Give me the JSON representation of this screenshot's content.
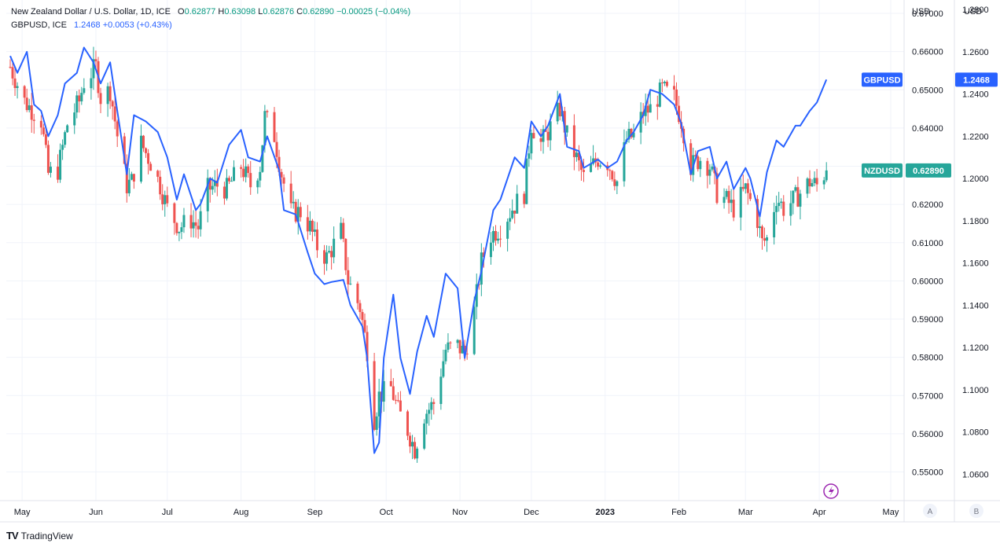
{
  "legend": {
    "main_name": "New Zealand Dollar / U.S. Dollar, 1D, ICE",
    "open_label": "O",
    "open": "0.62877",
    "high_label": "H",
    "high": "0.63098",
    "low_label": "L",
    "low": "0.62876",
    "close_label": "C",
    "close": "0.62890",
    "change": "−0.00025 (−0.04%)",
    "compare_name": "GBPUSD, ICE",
    "compare_value": "1.2468",
    "compare_change": "+0.0053 (+0.43%)"
  },
  "axes": {
    "left_unit": "USD",
    "right_unit": "USD",
    "left_scale_button": "A",
    "right_scale_button": "B"
  },
  "badges": {
    "gbpusd_label": "GBPUSD",
    "gbpusd_value": "1.2468",
    "nzdusd_label": "NZDUSD",
    "nzdusd_value": "0.62890"
  },
  "footer": {
    "brand": "TradingView"
  },
  "colors": {
    "up": "#26a69a",
    "down": "#ef5350",
    "line": "#2962ff",
    "badge_green": "#26a69a",
    "badge_blue": "#2962ff",
    "grid": "#f0f3fa"
  },
  "chart_data": {
    "type": "candlestick+line",
    "x_ticks": [
      "May",
      "Jun",
      "Jul",
      "Aug",
      "Sep",
      "Oct",
      "Nov",
      "Dec",
      "2023",
      "Feb",
      "Mar",
      "Apr",
      "May"
    ],
    "nzdusd_axis": {
      "ticks": [
        "0.55000",
        "0.56000",
        "0.57000",
        "0.58000",
        "0.59000",
        "0.60000",
        "0.61000",
        "0.62000",
        "0.63000",
        "0.64000",
        "0.65000",
        "0.66000",
        "0.67000"
      ],
      "ylim": [
        0.5425,
        0.6735
      ]
    },
    "gbpusd_axis": {
      "ticks": [
        "1.0600",
        "1.0800",
        "1.1000",
        "1.1200",
        "1.1400",
        "1.1600",
        "1.1800",
        "1.2000",
        "1.2200",
        "1.2400",
        "1.2600",
        "1.2800"
      ],
      "ylim": [
        1.0475,
        1.2845
      ]
    },
    "nzdusd_close_path": [
      [
        "2022-04-26",
        0.656
      ],
      [
        "2022-05-02",
        0.647
      ],
      [
        "2022-05-09",
        0.642
      ],
      [
        "2022-05-12",
        0.628
      ],
      [
        "2022-05-16",
        0.629
      ],
      [
        "2022-05-20",
        0.641
      ],
      [
        "2022-05-25",
        0.647
      ],
      [
        "2022-05-27",
        0.652
      ],
      [
        "2022-06-01",
        0.656
      ],
      [
        "2022-06-03",
        0.648
      ],
      [
        "2022-06-07",
        0.65
      ],
      [
        "2022-06-10",
        0.638
      ],
      [
        "2022-06-14",
        0.625
      ],
      [
        "2022-06-16",
        0.626
      ],
      [
        "2022-06-20",
        0.636
      ],
      [
        "2022-06-24",
        0.631
      ],
      [
        "2022-06-28",
        0.625
      ],
      [
        "2022-07-01",
        0.619
      ],
      [
        "2022-07-06",
        0.614
      ],
      [
        "2022-07-11",
        0.616
      ],
      [
        "2022-07-14",
        0.614
      ],
      [
        "2022-07-18",
        0.624
      ],
      [
        "2022-07-22",
        0.625
      ],
      [
        "2022-07-26",
        0.624
      ],
      [
        "2022-08-01",
        0.63
      ],
      [
        "2022-08-05",
        0.625
      ],
      [
        "2022-08-09",
        0.63
      ],
      [
        "2022-08-11",
        0.643
      ],
      [
        "2022-08-15",
        0.638
      ],
      [
        "2022-08-18",
        0.628
      ],
      [
        "2022-08-22",
        0.618
      ],
      [
        "2022-08-26",
        0.618
      ],
      [
        "2022-08-30",
        0.614
      ],
      [
        "2022-09-02",
        0.609
      ],
      [
        "2022-09-06",
        0.606
      ],
      [
        "2022-09-12",
        0.613
      ],
      [
        "2022-09-15",
        0.6
      ],
      [
        "2022-09-20",
        0.593
      ],
      [
        "2022-09-23",
        0.582
      ],
      [
        "2022-09-26",
        0.564
      ],
      [
        "2022-09-28",
        0.57
      ],
      [
        "2022-10-03",
        0.572
      ],
      [
        "2022-10-06",
        0.566
      ],
      [
        "2022-10-10",
        0.561
      ],
      [
        "2022-10-13",
        0.556
      ],
      [
        "2022-10-17",
        0.565
      ],
      [
        "2022-10-21",
        0.568
      ],
      [
        "2022-10-26",
        0.582
      ],
      [
        "2022-10-31",
        0.583
      ],
      [
        "2022-11-03",
        0.581
      ],
      [
        "2022-11-07",
        0.592
      ],
      [
        "2022-11-10",
        0.605
      ],
      [
        "2022-11-14",
        0.612
      ],
      [
        "2022-11-18",
        0.614
      ],
      [
        "2022-11-23",
        0.619
      ],
      [
        "2022-11-28",
        0.623
      ],
      [
        "2022-12-01",
        0.641
      ],
      [
        "2022-12-05",
        0.636
      ],
      [
        "2022-12-08",
        0.639
      ],
      [
        "2022-12-13",
        0.645
      ],
      [
        "2022-12-16",
        0.638
      ],
      [
        "2022-12-20",
        0.632
      ],
      [
        "2022-12-23",
        0.627
      ],
      [
        "2022-12-29",
        0.632
      ],
      [
        "2023-01-02",
        0.631
      ],
      [
        "2023-01-06",
        0.626
      ],
      [
        "2023-01-10",
        0.637
      ],
      [
        "2023-01-13",
        0.638
      ],
      [
        "2023-01-17",
        0.644
      ],
      [
        "2023-01-20",
        0.645
      ],
      [
        "2023-01-25",
        0.65
      ],
      [
        "2023-01-30",
        0.648
      ],
      [
        "2023-02-02",
        0.642
      ],
      [
        "2023-02-06",
        0.63
      ],
      [
        "2023-02-10",
        0.632
      ],
      [
        "2023-02-14",
        0.63
      ],
      [
        "2023-02-17",
        0.623
      ],
      [
        "2023-02-21",
        0.621
      ],
      [
        "2023-02-24",
        0.619
      ],
      [
        "2023-03-01",
        0.624
      ],
      [
        "2023-03-03",
        0.621
      ],
      [
        "2023-03-06",
        0.616
      ],
      [
        "2023-03-08",
        0.61
      ],
      [
        "2023-03-10",
        0.611
      ],
      [
        "2023-03-14",
        0.622
      ],
      [
        "2023-03-17",
        0.619
      ],
      [
        "2023-03-21",
        0.621
      ],
      [
        "2023-03-24",
        0.623
      ],
      [
        "2023-03-28",
        0.626
      ],
      [
        "2023-03-31",
        0.625
      ],
      [
        "2023-04-04",
        0.6289
      ]
    ],
    "gbpusd_close": [
      [
        "2022-04-26",
        1.258
      ],
      [
        "2022-04-29",
        1.25
      ],
      [
        "2022-05-03",
        1.26
      ],
      [
        "2022-05-06",
        1.235
      ],
      [
        "2022-05-09",
        1.232
      ],
      [
        "2022-05-12",
        1.22
      ],
      [
        "2022-05-16",
        1.23
      ],
      [
        "2022-05-19",
        1.245
      ],
      [
        "2022-05-24",
        1.25
      ],
      [
        "2022-05-27",
        1.262
      ],
      [
        "2022-05-31",
        1.255
      ],
      [
        "2022-06-03",
        1.245
      ],
      [
        "2022-06-07",
        1.255
      ],
      [
        "2022-06-10",
        1.232
      ],
      [
        "2022-06-14",
        1.202
      ],
      [
        "2022-06-17",
        1.23
      ],
      [
        "2022-06-22",
        1.227
      ],
      [
        "2022-06-27",
        1.222
      ],
      [
        "2022-07-01",
        1.21
      ],
      [
        "2022-07-05",
        1.19
      ],
      [
        "2022-07-08",
        1.202
      ],
      [
        "2022-07-13",
        1.185
      ],
      [
        "2022-07-15",
        1.188
      ],
      [
        "2022-07-19",
        1.2
      ],
      [
        "2022-07-22",
        1.198
      ],
      [
        "2022-07-27",
        1.216
      ],
      [
        "2022-08-01",
        1.223
      ],
      [
        "2022-08-04",
        1.21
      ],
      [
        "2022-08-09",
        1.208
      ],
      [
        "2022-08-12",
        1.22
      ],
      [
        "2022-08-17",
        1.204
      ],
      [
        "2022-08-19",
        1.185
      ],
      [
        "2022-08-24",
        1.183
      ],
      [
        "2022-08-29",
        1.165
      ],
      [
        "2022-09-01",
        1.155
      ],
      [
        "2022-09-05",
        1.15
      ],
      [
        "2022-09-08",
        1.151
      ],
      [
        "2022-09-13",
        1.152
      ],
      [
        "2022-09-16",
        1.14
      ],
      [
        "2022-09-21",
        1.13
      ],
      [
        "2022-09-23",
        1.115
      ],
      [
        "2022-09-26",
        1.07
      ],
      [
        "2022-09-28",
        1.075
      ],
      [
        "2022-09-30",
        1.115
      ],
      [
        "2022-10-04",
        1.145
      ],
      [
        "2022-10-07",
        1.115
      ],
      [
        "2022-10-11",
        1.098
      ],
      [
        "2022-10-14",
        1.118
      ],
      [
        "2022-10-18",
        1.135
      ],
      [
        "2022-10-21",
        1.125
      ],
      [
        "2022-10-26",
        1.155
      ],
      [
        "2022-10-31",
        1.148
      ],
      [
        "2022-11-03",
        1.115
      ],
      [
        "2022-11-07",
        1.142
      ],
      [
        "2022-11-10",
        1.156
      ],
      [
        "2022-11-15",
        1.185
      ],
      [
        "2022-11-18",
        1.19
      ],
      [
        "2022-11-24",
        1.21
      ],
      [
        "2022-11-28",
        1.205
      ],
      [
        "2022-12-01",
        1.227
      ],
      [
        "2022-12-05",
        1.22
      ],
      [
        "2022-12-08",
        1.225
      ],
      [
        "2022-12-13",
        1.24
      ],
      [
        "2022-12-16",
        1.215
      ],
      [
        "2022-12-21",
        1.213
      ],
      [
        "2022-12-23",
        1.205
      ],
      [
        "2022-12-29",
        1.209
      ],
      [
        "2023-01-02",
        1.205
      ],
      [
        "2023-01-06",
        1.208
      ],
      [
        "2023-01-10",
        1.218
      ],
      [
        "2023-01-13",
        1.222
      ],
      [
        "2023-01-17",
        1.23
      ],
      [
        "2023-01-20",
        1.242
      ],
      [
        "2023-01-25",
        1.24
      ],
      [
        "2023-01-30",
        1.235
      ],
      [
        "2023-02-02",
        1.226
      ],
      [
        "2023-02-06",
        1.202
      ],
      [
        "2023-02-09",
        1.213
      ],
      [
        "2023-02-14",
        1.215
      ],
      [
        "2023-02-17",
        1.2
      ],
      [
        "2023-02-21",
        1.208
      ],
      [
        "2023-02-24",
        1.195
      ],
      [
        "2023-03-01",
        1.205
      ],
      [
        "2023-03-03",
        1.2
      ],
      [
        "2023-03-07",
        1.182
      ],
      [
        "2023-03-10",
        1.203
      ],
      [
        "2023-03-14",
        1.218
      ],
      [
        "2023-03-17",
        1.215
      ],
      [
        "2023-03-22",
        1.225
      ],
      [
        "2023-03-24",
        1.225
      ],
      [
        "2023-03-28",
        1.232
      ],
      [
        "2023-03-31",
        1.236
      ],
      [
        "2023-04-04",
        1.2468
      ]
    ]
  }
}
